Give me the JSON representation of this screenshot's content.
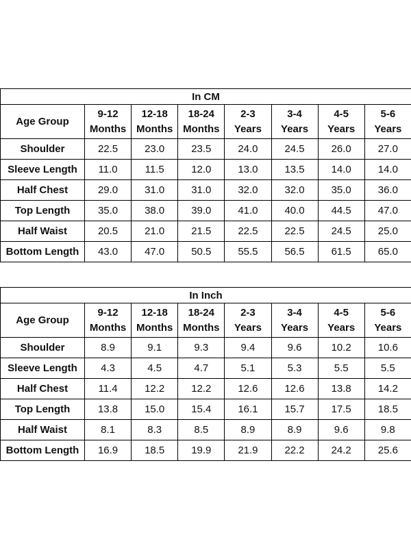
{
  "tables": [
    {
      "title": "In CM",
      "header": {
        "label": "Age Group",
        "columns": [
          {
            "line1": "9-12",
            "line2": "Months"
          },
          {
            "line1": "12-18",
            "line2": "Months"
          },
          {
            "line1": "18-24",
            "line2": "Months"
          },
          {
            "line1": "2-3",
            "line2": "Years"
          },
          {
            "line1": "3-4",
            "line2": "Years"
          },
          {
            "line1": "4-5",
            "line2": "Years"
          },
          {
            "line1": "5-6",
            "line2": "Years"
          }
        ]
      },
      "rows": [
        {
          "label": "Shoulder",
          "values": [
            "22.5",
            "23.0",
            "23.5",
            "24.0",
            "24.5",
            "26.0",
            "27.0"
          ]
        },
        {
          "label": "Sleeve Length",
          "values": [
            "11.0",
            "11.5",
            "12.0",
            "13.0",
            "13.5",
            "14.0",
            "14.0"
          ]
        },
        {
          "label": "Half Chest",
          "values": [
            "29.0",
            "31.0",
            "31.0",
            "32.0",
            "32.0",
            "35.0",
            "36.0"
          ]
        },
        {
          "label": "Top Length",
          "values": [
            "35.0",
            "38.0",
            "39.0",
            "41.0",
            "40.0",
            "44.5",
            "47.0"
          ]
        },
        {
          "label": "Half Waist",
          "values": [
            "20.5",
            "21.0",
            "21.5",
            "22.5",
            "22.5",
            "24.5",
            "25.0"
          ]
        },
        {
          "label": "Bottom Length",
          "values": [
            "43.0",
            "47.0",
            "50.5",
            "55.5",
            "56.5",
            "61.5",
            "65.0"
          ]
        }
      ]
    },
    {
      "title": "In Inch",
      "header": {
        "label": "Age Group",
        "columns": [
          {
            "line1": "9-12",
            "line2": "Months"
          },
          {
            "line1": "12-18",
            "line2": "Months"
          },
          {
            "line1": "18-24",
            "line2": "Months"
          },
          {
            "line1": "2-3",
            "line2": "Years"
          },
          {
            "line1": "3-4",
            "line2": "Years"
          },
          {
            "line1": "4-5",
            "line2": "Years"
          },
          {
            "line1": "5-6",
            "line2": "Years"
          }
        ]
      },
      "rows": [
        {
          "label": "Shoulder",
          "values": [
            "8.9",
            "9.1",
            "9.3",
            "9.4",
            "9.6",
            "10.2",
            "10.6"
          ]
        },
        {
          "label": "Sleeve Length",
          "values": [
            "4.3",
            "4.5",
            "4.7",
            "5.1",
            "5.3",
            "5.5",
            "5.5"
          ]
        },
        {
          "label": "Half Chest",
          "values": [
            "11.4",
            "12.2",
            "12.2",
            "12.6",
            "12.6",
            "13.8",
            "14.2"
          ]
        },
        {
          "label": "Top Length",
          "values": [
            "13.8",
            "15.0",
            "15.4",
            "16.1",
            "15.7",
            "17.5",
            "18.5"
          ]
        },
        {
          "label": "Half Waist",
          "values": [
            "8.1",
            "8.3",
            "8.5",
            "8.9",
            "8.9",
            "9.6",
            "9.8"
          ]
        },
        {
          "label": "Bottom Length",
          "values": [
            "16.9",
            "18.5",
            "19.9",
            "21.9",
            "22.2",
            "24.2",
            "25.6"
          ]
        }
      ]
    }
  ]
}
